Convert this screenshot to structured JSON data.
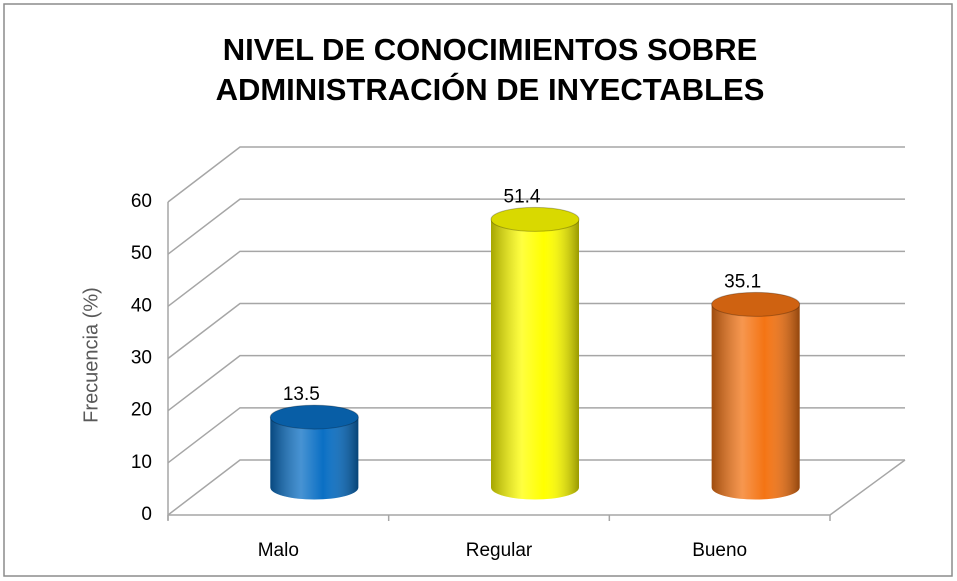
{
  "chart_data": {
    "type": "bar3d",
    "title": [
      "NIVEL DE CONOCIMIENTOS SOBRE",
      "ADMINISTRACIÓN DE INYECTABLES"
    ],
    "y_label": "Frecuencia (%)",
    "categories": [
      "Malo",
      "Regular",
      "Bueno"
    ],
    "values": [
      13.5,
      51.4,
      35.1
    ],
    "colors": [
      "#0a6fc4",
      "#ffff00",
      "#f47414"
    ],
    "ylim": [
      0,
      60
    ],
    "yticks": [
      0,
      10,
      20,
      30,
      40,
      50,
      60
    ],
    "grid": true
  }
}
